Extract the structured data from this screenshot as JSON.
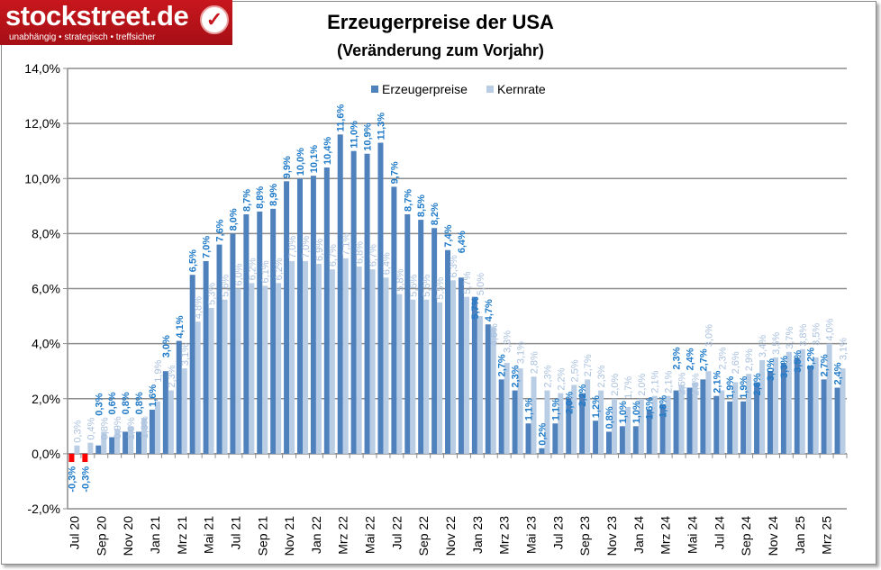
{
  "logo": {
    "name": "stockstreet.de",
    "tagline": "unabhängig • strategisch • treffsicher",
    "icon": "checkmark-icon"
  },
  "chart_data": {
    "type": "bar",
    "title": "Erzeugerpreise der USA",
    "subtitle": "(Veränderung zum Vorjahr)",
    "xlabel": "",
    "ylabel": "",
    "ylim": [
      -2,
      14
    ],
    "yticks": [
      "-2,0%",
      "0,0%",
      "2,0%",
      "4,0%",
      "6,0%",
      "8,0%",
      "10,0%",
      "12,0%",
      "14,0%"
    ],
    "grid": true,
    "legend_position": "top-center",
    "categories": [
      "Jul 20",
      "Aug 20",
      "Sep 20",
      "Okt 20",
      "Nov 20",
      "Dez 20",
      "Jan 21",
      "Feb 21",
      "Mrz 21",
      "Apr 21",
      "Mai 21",
      "Jun 21",
      "Jul 21",
      "Aug 21",
      "Sep 21",
      "Okt 21",
      "Nov 21",
      "Dez 21",
      "Jan 22",
      "Feb 22",
      "Mrz 22",
      "Apr 22",
      "Mai 22",
      "Jun 22",
      "Jul 22",
      "Aug 22",
      "Sep 22",
      "Okt 22",
      "Nov 22",
      "Dez 22",
      "Jan 23",
      "Feb 23",
      "Mrz 23",
      "Apr 23",
      "Mai 23",
      "Jun 23",
      "Jul 23",
      "Aug 23",
      "Sep 23",
      "Okt 23",
      "Nov 23",
      "Dez 23",
      "Jan 24",
      "Feb 24",
      "Mrz 24",
      "Apr 24",
      "Mai 24",
      "Jun 24",
      "Jul 24",
      "Aug 24",
      "Sep 24",
      "Okt 24",
      "Nov 24",
      "Dez 24",
      "Jan 25",
      "Feb 25",
      "Mrz 25",
      "Apr 25"
    ],
    "xtick_labels": [
      "Jul 20",
      "Sep 20",
      "Nov 20",
      "Jan 21",
      "Mrz 21",
      "Mai 21",
      "Jul 21",
      "Sep 21",
      "Nov 21",
      "Jan 22",
      "Mrz 22",
      "Mai 22",
      "Jul 22",
      "Sep 22",
      "Nov 22",
      "Jan 23",
      "Mrz 23",
      "Mai 23",
      "Jul 23",
      "Sep 23",
      "Nov 23",
      "Jan 24",
      "Mrz 24",
      "Mai 24",
      "Jul 24",
      "Sep 24",
      "Nov 24",
      "Jan 25",
      "Mrz 25"
    ],
    "series": [
      {
        "name": "Erzeugerpreise",
        "color": "#4f81bd",
        "negative_color": "#ff0000",
        "label_color": "#1f7ac8",
        "values": [
          -0.3,
          -0.3,
          0.3,
          0.6,
          0.8,
          0.8,
          1.6,
          3.0,
          4.1,
          6.5,
          7.0,
          7.6,
          8.0,
          8.7,
          8.8,
          8.9,
          9.9,
          10.0,
          10.1,
          10.4,
          11.6,
          11.0,
          10.9,
          11.3,
          9.7,
          8.7,
          8.5,
          8.2,
          7.4,
          6.4,
          5.7,
          4.7,
          2.7,
          2.3,
          1.1,
          0.2,
          1.1,
          2.0,
          2.2,
          1.2,
          0.8,
          1.0,
          1.0,
          1.6,
          1.8,
          2.3,
          2.4,
          2.7,
          2.1,
          1.9,
          1.9,
          2.6,
          3.0,
          3.3,
          3.5,
          3.2,
          2.7,
          2.4
        ]
      },
      {
        "name": "Kernrate",
        "color": "#b9cde5",
        "label_color": "#a9c0de",
        "values": [
          0.3,
          0.4,
          0.8,
          0.9,
          1.0,
          1.3,
          1.9,
          2.3,
          3.1,
          4.8,
          5.3,
          5.6,
          6.0,
          6.2,
          6.1,
          6.2,
          7.0,
          7.0,
          6.9,
          6.7,
          7.1,
          6.8,
          6.7,
          6.4,
          5.8,
          5.6,
          5.6,
          5.5,
          6.3,
          5.7,
          5.0,
          4.6,
          3.3,
          3.1,
          2.8,
          2.3,
          2.2,
          2.5,
          2.7,
          2.3,
          2.0,
          1.7,
          2.0,
          2.1,
          2.1,
          2.5,
          2.6,
          3.0,
          2.3,
          2.6,
          2.9,
          3.4,
          3.5,
          3.7,
          3.8,
          3.5,
          4.0,
          3.1
        ]
      }
    ]
  }
}
